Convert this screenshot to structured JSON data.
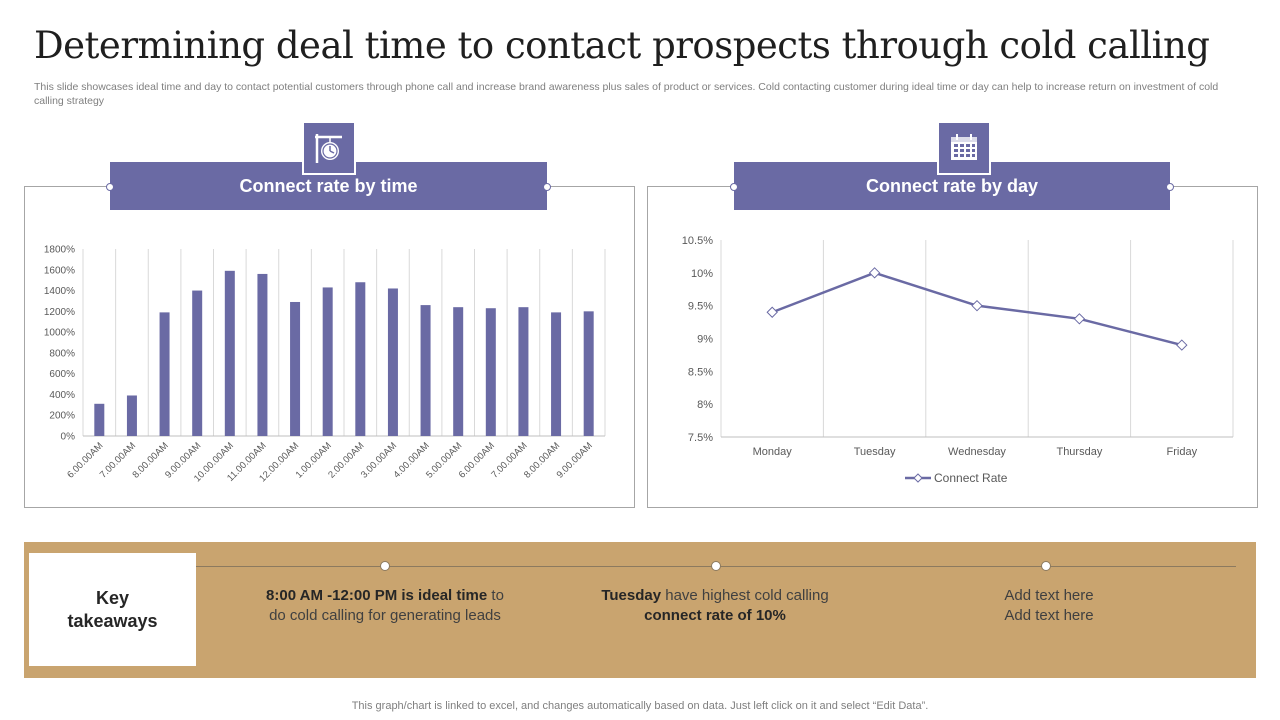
{
  "page": {
    "title": "Determining deal time to contact prospects through cold calling",
    "subtitle": "This slide showcases ideal time and day to contact potential customers through phone call and increase brand awareness plus sales of product or services. Cold contacting customer during ideal time or day can help to increase return on investment of cold calling strategy",
    "footer": "This graph/chart is linked to excel, and changes automatically based on data. Just left click on it and select “Edit Data”."
  },
  "colors": {
    "accent": "#6a6aa4",
    "band": "#c9a46f",
    "grid": "#d9d9d9"
  },
  "panels": {
    "time": {
      "header": "Connect rate by time",
      "icon": "clock-sign-icon"
    },
    "day": {
      "header": "Connect rate by day",
      "icon": "calendar-icon"
    }
  },
  "chart_data": [
    {
      "type": "bar",
      "title": "",
      "categories": [
        "6.00.00AM",
        "7.00.00AM",
        "8.00.00AM",
        "9.00.00AM",
        "10.00.00AM",
        "11.00.00AM",
        "12.00.00AM",
        "1.00.00AM",
        "2.00.00AM",
        "3.00.00AM",
        "4.00.00AM",
        "5.00.00AM",
        "6.00.00AM",
        "7.00.00AM",
        "8.00.00AM",
        "9.00.00AM"
      ],
      "values": [
        310,
        390,
        1190,
        1400,
        1590,
        1560,
        1290,
        1430,
        1480,
        1420,
        1260,
        1240,
        1230,
        1240,
        1190,
        1200
      ],
      "yticks": [
        "0%",
        "200%",
        "400%",
        "600%",
        "800%",
        "1000%",
        "1200%",
        "1400%",
        "1600%",
        "1800%"
      ],
      "ylim": [
        0,
        1800
      ],
      "grid": "vertical",
      "xlabel": "",
      "ylabel": ""
    },
    {
      "type": "line",
      "title": "",
      "categories": [
        "Monday",
        "Tuesday",
        "Wednesday",
        "Thursday",
        "Friday"
      ],
      "series": [
        {
          "name": "Connect Rate",
          "values": [
            9.4,
            10.0,
            9.5,
            9.3,
            8.9
          ]
        }
      ],
      "yticks": [
        "7.5%",
        "8%",
        "8.5%",
        "9%",
        "9.5%",
        "10%",
        "10.5%"
      ],
      "ylim": [
        7.5,
        10.5
      ],
      "legend": "bottom",
      "grid": "vertical",
      "xlabel": "",
      "ylabel": ""
    }
  ],
  "takeaways": {
    "heading_line1": "Key",
    "heading_line2": "takeaways",
    "items": [
      {
        "bold1": "8:00 AM -12:00 PM is ideal time",
        "text1": " to do cold calling for generating leads"
      },
      {
        "bold1": "Tuesday",
        "text1": " have highest cold calling ",
        "bold2": "connect rate of 10%"
      },
      {
        "line1": "Add text here",
        "line2": "Add text here"
      }
    ]
  }
}
